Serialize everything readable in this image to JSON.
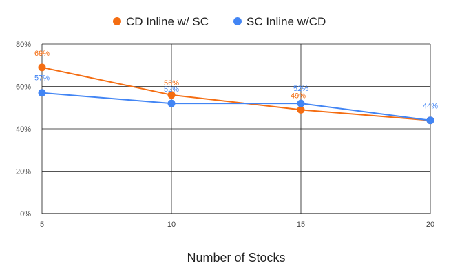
{
  "chart_data": {
    "type": "line",
    "title": "",
    "xlabel": "Number of Stocks",
    "ylabel": "",
    "x": [
      5,
      10,
      15,
      20
    ],
    "x_tick_labels": [
      "5",
      "10",
      "15",
      "20"
    ],
    "y_tick_labels": [
      "0%",
      "20%",
      "40%",
      "60%",
      "80%"
    ],
    "y_ticks": [
      0,
      20,
      40,
      60,
      80
    ],
    "ylim": [
      0,
      80
    ],
    "xlim": [
      5,
      20
    ],
    "grid": true,
    "legend_position": "top",
    "series": [
      {
        "name": "CD Inline w/ SC",
        "color": "#f46d12",
        "values": [
          69,
          56,
          49,
          44
        ],
        "labels": [
          "69%",
          "56%",
          "49%",
          ""
        ]
      },
      {
        "name": "SC Inline w/CD",
        "color": "#4285f4",
        "values": [
          57,
          52,
          52,
          44
        ],
        "labels": [
          "57%",
          "52%",
          "52%",
          "44%"
        ]
      }
    ]
  }
}
